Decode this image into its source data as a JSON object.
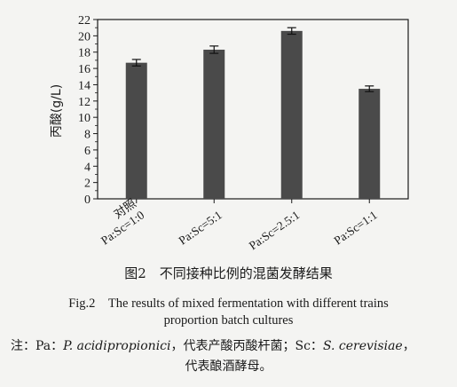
{
  "chart_data": {
    "type": "bar",
    "categories": [
      [
        "对照",
        "Pa:Sc=1:0"
      ],
      [
        "Pa:Sc=5:1"
      ],
      [
        "Pa:Sc=2.5:1"
      ],
      [
        "Pa:Sc=1:1"
      ]
    ],
    "values": [
      16.7,
      18.3,
      20.6,
      13.5
    ],
    "errors": [
      0.4,
      0.45,
      0.4,
      0.35
    ],
    "ylabel": "丙酸(g/L)",
    "ylim": [
      0,
      22
    ],
    "yticks": [
      0,
      2,
      4,
      6,
      8,
      10,
      12,
      14,
      16,
      18,
      20,
      22
    ],
    "grid": false,
    "bar_color": "#4a4a4a"
  },
  "caption": {
    "cn": "图2　不同接种比例的混菌发酵结果",
    "en_line1": "Fig.2　The results of mixed fermentation with different trains",
    "en_line2": "proportion batch cultures"
  },
  "note": {
    "prefix": "注：Pa：",
    "pa_species": "P. acidipropionici",
    "pa_desc": "，代表产酸丙酸杆菌；Sc：",
    "sc_species": "S. cerevisiae",
    "sc_desc_end": "，",
    "line2": "代表酿酒酵母。"
  }
}
